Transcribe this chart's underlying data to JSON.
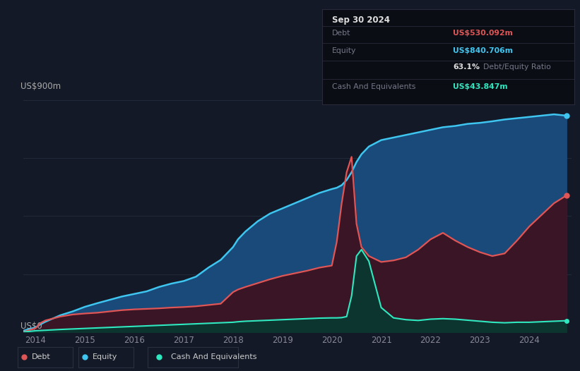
{
  "background_color": "#131926",
  "plot_bg_color": "#131926",
  "grid_color": "#222a3a",
  "ylabel_text": "US$900m",
  "y0_label": "US$0",
  "title_box": {
    "date": "Sep 30 2024",
    "box_color": "#0a0d14",
    "border_color": "#2a2a3a",
    "debt_label": "Debt",
    "debt_value": "US$530.092m",
    "debt_color": "#e05555",
    "equity_label": "Equity",
    "equity_value": "US$840.706m",
    "equity_color": "#3ec6f0",
    "ratio_pct": "63.1%",
    "ratio_text": " Debt/Equity Ratio",
    "cash_label": "Cash And Equivalents",
    "cash_value": "US$43.847m",
    "cash_color": "#30e8c0"
  },
  "debt_color": "#e05555",
  "equity_color": "#3ec6f0",
  "cash_color": "#30e8c0",
  "equity_fill": "#1a4a7a",
  "debt_fill": "#3a1525",
  "cash_fill": "#0d3530",
  "years": [
    2013.75,
    2014.0,
    2014.1,
    2014.2,
    2014.5,
    2014.75,
    2015.0,
    2015.25,
    2015.5,
    2015.75,
    2016.0,
    2016.25,
    2016.5,
    2016.75,
    2017.0,
    2017.25,
    2017.5,
    2017.75,
    2018.0,
    2018.1,
    2018.25,
    2018.5,
    2018.75,
    2019.0,
    2019.25,
    2019.5,
    2019.75,
    2020.0,
    2020.1,
    2020.2,
    2020.3,
    2020.4,
    2020.5,
    2020.6,
    2020.75,
    2021.0,
    2021.25,
    2021.5,
    2021.75,
    2022.0,
    2022.25,
    2022.5,
    2022.75,
    2023.0,
    2023.25,
    2023.5,
    2023.75,
    2024.0,
    2024.25,
    2024.5,
    2024.75
  ],
  "equity": [
    5,
    18,
    30,
    40,
    65,
    80,
    98,
    112,
    125,
    138,
    148,
    158,
    175,
    188,
    198,
    215,
    250,
    280,
    330,
    360,
    390,
    430,
    460,
    480,
    500,
    520,
    540,
    555,
    560,
    570,
    590,
    620,
    660,
    690,
    720,
    745,
    755,
    765,
    775,
    785,
    795,
    800,
    808,
    812,
    818,
    825,
    830,
    835,
    840,
    845,
    840
  ],
  "debt": [
    0,
    15,
    35,
    45,
    60,
    68,
    72,
    75,
    80,
    85,
    88,
    90,
    92,
    95,
    97,
    100,
    105,
    110,
    155,
    165,
    175,
    190,
    205,
    218,
    228,
    238,
    250,
    258,
    350,
    500,
    620,
    680,
    420,
    330,
    295,
    272,
    278,
    290,
    320,
    360,
    385,
    355,
    330,
    310,
    295,
    305,
    355,
    410,
    455,
    500,
    530
  ],
  "cash": [
    0,
    5,
    6,
    7,
    10,
    12,
    14,
    16,
    18,
    20,
    22,
    24,
    26,
    28,
    30,
    32,
    34,
    36,
    38,
    40,
    42,
    44,
    46,
    48,
    50,
    52,
    54,
    55,
    55,
    56,
    60,
    140,
    295,
    320,
    275,
    95,
    55,
    48,
    45,
    50,
    52,
    50,
    46,
    42,
    38,
    36,
    38,
    38,
    40,
    42,
    44
  ],
  "ylim": [
    0,
    900
  ],
  "xlim": [
    2013.75,
    2024.85
  ],
  "xticks": [
    2014,
    2015,
    2016,
    2017,
    2018,
    2019,
    2020,
    2021,
    2022,
    2023,
    2024
  ],
  "legend": [
    {
      "label": "Debt",
      "color": "#e05555"
    },
    {
      "label": "Equity",
      "color": "#3ec6f0"
    },
    {
      "label": "Cash And Equivalents",
      "color": "#30e8c0"
    }
  ]
}
